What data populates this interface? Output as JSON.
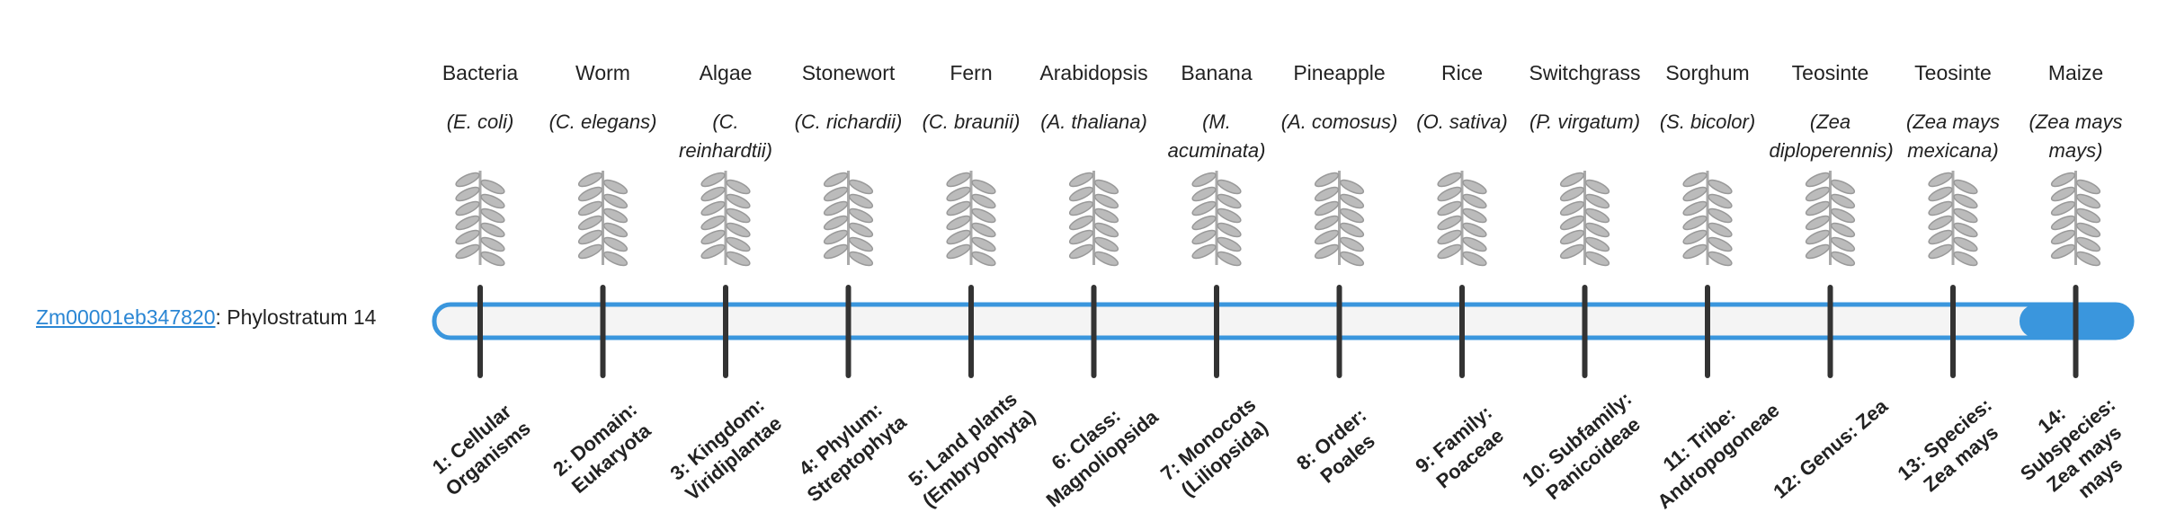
{
  "gene": {
    "id": "Zm00001eb347820",
    "label": ": Phylostratum 14"
  },
  "organisms": [
    {
      "name": "Bacteria",
      "species": "(E. coli)",
      "stratum": "1: Cellular Organisms"
    },
    {
      "name": "Worm",
      "species": "(C. elegans)",
      "stratum": "2: Domain: Eukaryota"
    },
    {
      "name": "Algae",
      "species": "(C. reinhardtii)",
      "stratum": "3: Kingdom: Viridiplantae"
    },
    {
      "name": "Stonewort",
      "species": "(C. richardii)",
      "stratum": "4: Phylum: Streptophyta"
    },
    {
      "name": "Fern",
      "species": "(C. braunii)",
      "stratum": "5: Land plants (Embryophyta)"
    },
    {
      "name": "Arabidopsis",
      "species": "(A. thaliana)",
      "stratum": "6: Class: Magnoliopsida"
    },
    {
      "name": "Banana",
      "species": "(M. acuminata)",
      "stratum": "7: Monocots (Liliopsida)"
    },
    {
      "name": "Pineapple",
      "species": "(A. comosus)",
      "stratum": "8: Order: Poales"
    },
    {
      "name": "Rice",
      "species": "(O. sativa)",
      "stratum": "9: Family: Poaceae"
    },
    {
      "name": "Switchgrass",
      "species": "(P. virgatum)",
      "stratum": "10: Subfamily: Panicoideae"
    },
    {
      "name": "Sorghum",
      "species": "(S. bicolor)",
      "stratum": "11: Tribe: Andropogoneae"
    },
    {
      "name": "Teosinte",
      "species": "(Zea diploperennis)",
      "stratum": "12: Genus: Zea"
    },
    {
      "name": "Teosinte",
      "species": "(Zea mays mexicana)",
      "stratum": "13: Species: Zea mays"
    },
    {
      "name": "Maize",
      "species": "(Zea mays mays)",
      "stratum": "14: Subspecies: Zea mays mays"
    }
  ]
}
